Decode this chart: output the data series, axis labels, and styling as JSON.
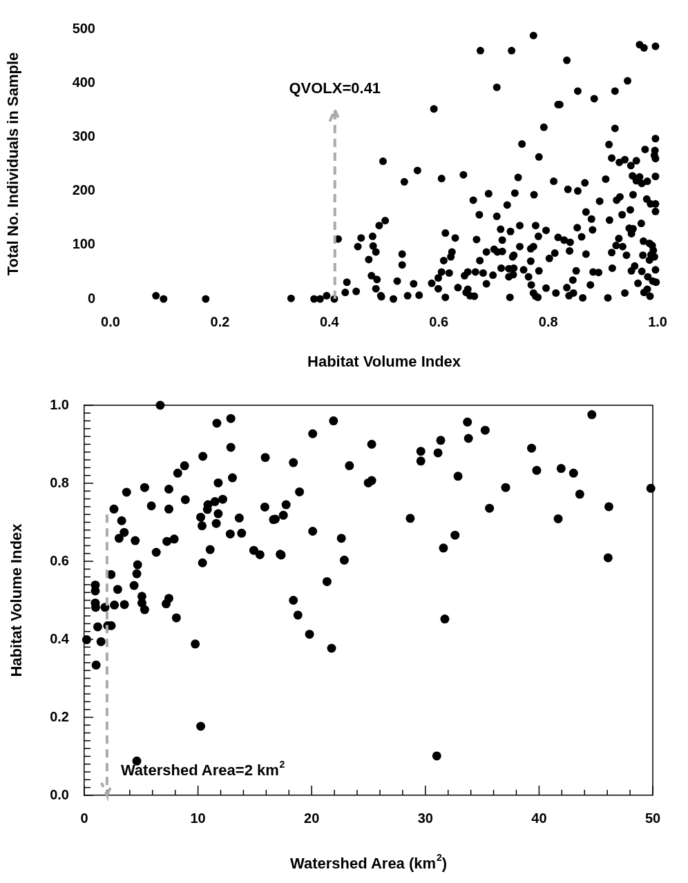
{
  "chart_data": [
    {
      "type": "scatter",
      "xlabel": "Habitat Volume Index",
      "ylabel": "Total No. Individuals in Sample",
      "marker": "circle",
      "grid": false,
      "legend": false,
      "xlim": [
        0,
        1
      ],
      "ylim": [
        0,
        500
      ],
      "xticks": [
        {
          "value": 0,
          "label": "0.0"
        },
        {
          "value": 0.2,
          "label": "0.2"
        },
        {
          "value": 0.4,
          "label": "0.4"
        },
        {
          "value": 0.6,
          "label": "0.6"
        },
        {
          "value": 0.8,
          "label": "0.8"
        },
        {
          "value": 1,
          "label": "1.0"
        }
      ],
      "yticks": [
        0,
        100,
        200,
        300,
        400,
        500
      ],
      "ref_lines": [
        {
          "axis": "x",
          "value": 0.41,
          "label": "QVOLX=0.41",
          "color": "#aaaaaa",
          "line_style": "dashed"
        }
      ],
      "x": [
        0.083,
        0.097,
        0.174,
        0.33,
        0.372,
        0.383,
        0.395,
        0.409,
        0.416,
        0.432,
        0.429,
        0.449,
        0.452,
        0.458,
        0.479,
        0.48,
        0.485,
        0.472,
        0.491,
        0.477,
        0.487,
        0.485,
        0.494,
        0.498,
        0.502,
        0.773,
        0.676,
        0.733,
        0.834,
        0.967,
        0.975,
        0.996,
        0.945,
        0.706,
        0.854,
        0.922,
        0.884,
        0.818,
        0.821,
        0.591,
        0.792,
        0.922,
        0.752,
        0.996,
        0.911,
        0.977,
        0.995,
        0.994,
        0.996,
        0.783,
        0.916,
        0.93,
        0.94,
        0.951,
        0.961,
        0.561,
        0.537,
        0.605,
        0.645,
        0.745,
        0.81,
        0.905,
        0.954,
        0.967,
        0.961,
        0.971,
        0.981,
        0.996,
        0.867,
        0.836,
        0.854,
        0.691,
        0.739,
        0.774,
        0.663,
        0.725,
        0.894,
        0.925,
        0.931,
        0.955,
        0.98,
        0.987,
        0.996,
        0.996,
        0.95,
        0.935,
        0.869,
        0.879,
        0.674,
        0.706,
        0.912,
        0.97,
        0.748,
        0.777,
        0.713,
        0.731,
        0.796,
        0.853,
        0.881,
        0.948,
        0.955,
        0.952,
        0.612,
        0.63,
        0.669,
        0.716,
        0.782,
        0.818,
        0.829,
        0.84,
        0.861,
        0.929,
        0.974,
        0.985,
        0.99,
        0.992,
        0.988,
        0.994,
        0.985,
        0.924,
        0.936,
        0.748,
        0.773,
        0.768,
        0.624,
        0.622,
        0.687,
        0.701,
        0.707,
        0.716,
        0.737,
        0.735,
        0.839,
        0.812,
        0.869,
        0.916,
        0.943,
        0.973,
        0.533,
        0.533,
        0.609,
        0.675,
        0.768,
        0.802,
        0.714,
        0.728,
        0.737,
        0.755,
        0.783,
        0.851,
        0.882,
        0.892,
        0.917,
        0.958,
        0.952,
        0.971,
        0.996,
        0.982,
        0.991,
        0.997,
        0.964,
        0.981,
        0.975,
        0.986,
        0.605,
        0.619,
        0.599,
        0.647,
        0.653,
        0.667,
        0.681,
        0.699,
        0.728,
        0.736,
        0.764,
        0.845,
        0.524,
        0.554,
        0.587,
        0.687,
        0.769,
        0.877,
        0.599,
        0.635,
        0.653,
        0.796,
        0.834,
        0.65,
        0.657,
        0.665,
        0.773,
        0.777,
        0.781,
        0.814,
        0.838,
        0.846,
        0.495,
        0.517,
        0.543,
        0.564,
        0.612,
        0.73,
        0.863,
        0.909,
        0.94
      ],
      "series": [
        {
          "color": "#000000",
          "values": [
            6,
            0,
            0,
            1,
            0,
            0,
            6,
            0,
            111,
            31,
            12,
            14,
            97,
            113,
            116,
            98,
            87,
            73,
            136,
            43,
            36,
            19,
            6,
            255,
            145,
            488,
            460,
            460,
            442,
            471,
            465,
            468,
            404,
            392,
            385,
            385,
            371,
            360,
            360,
            352,
            318,
            316,
            287,
            297,
            286,
            277,
            275,
            266,
            260,
            263,
            261,
            253,
            258,
            247,
            256,
            238,
            217,
            223,
            230,
            225,
            218,
            222,
            228,
            226,
            219,
            214,
            218,
            227,
            215,
            203,
            200,
            195,
            196,
            193,
            183,
            174,
            181,
            183,
            189,
            193,
            185,
            176,
            176,
            162,
            165,
            156,
            161,
            148,
            156,
            153,
            146,
            140,
            136,
            136,
            129,
            125,
            127,
            132,
            128,
            131,
            130,
            121,
            122,
            113,
            110,
            109,
            116,
            114,
            109,
            105,
            115,
            112,
            107,
            103,
            99,
            90,
            82,
            78,
            72,
            99,
            97,
            97,
            97,
            93,
            87,
            78,
            87,
            92,
            87,
            88,
            81,
            78,
            89,
            85,
            83,
            86,
            81,
            81,
            83,
            63,
            71,
            71,
            70,
            75,
            57,
            56,
            57,
            54,
            52,
            52,
            50,
            49,
            57,
            61,
            52,
            51,
            54,
            41,
            33,
            31,
            29,
            18,
            12,
            5,
            50,
            48,
            39,
            43,
            50,
            50,
            48,
            44,
            41,
            45,
            41,
            35,
            33,
            28,
            29,
            28,
            26,
            26,
            19,
            21,
            18,
            20,
            21,
            12,
            6,
            5,
            11,
            5,
            3,
            11,
            6,
            11,
            4,
            0,
            6,
            7,
            3,
            3,
            2,
            2,
            11
          ]
        }
      ]
    },
    {
      "type": "scatter",
      "xlabel": "Watershed Area (km$^{2}$)",
      "ylabel": "Habitat Volume Index",
      "marker": "circle",
      "grid": false,
      "legend": false,
      "xlim": [
        0,
        50
      ],
      "ylim": [
        0,
        1
      ],
      "xticks": [
        0,
        {
          "value": 2,
          "label": null
        },
        {
          "value": 4,
          "label": null
        },
        {
          "value": 6,
          "label": null
        },
        {
          "value": 8,
          "label": null
        },
        10,
        {
          "value": 12,
          "label": null
        },
        {
          "value": 14,
          "label": null
        },
        {
          "value": 16,
          "label": null
        },
        {
          "value": 18,
          "label": null
        },
        20,
        {
          "value": 22,
          "label": null
        },
        {
          "value": 24,
          "label": null
        },
        {
          "value": 26,
          "label": null
        },
        {
          "value": 28,
          "label": null
        },
        30,
        {
          "value": 32,
          "label": null
        },
        {
          "value": 34,
          "label": null
        },
        {
          "value": 36,
          "label": null
        },
        {
          "value": 38,
          "label": null
        },
        40,
        {
          "value": 42,
          "label": null
        },
        {
          "value": 44,
          "label": null
        },
        {
          "value": 46,
          "label": null
        },
        {
          "value": 48,
          "label": null
        },
        50
      ],
      "yticks": [
        {
          "value": 0,
          "label": "0.0"
        },
        {
          "value": 0.02,
          "label": null
        },
        {
          "value": 0.04,
          "label": null
        },
        {
          "value": 0.06,
          "label": null
        },
        {
          "value": 0.08,
          "label": null
        },
        {
          "value": 0.1,
          "label": null
        },
        {
          "value": 0.12,
          "label": null
        },
        {
          "value": 0.14,
          "label": null
        },
        {
          "value": 0.16,
          "label": null
        },
        {
          "value": 0.18,
          "label": null
        },
        {
          "value": 0.2,
          "label": "0.2"
        },
        {
          "value": 0.22,
          "label": null
        },
        {
          "value": 0.24,
          "label": null
        },
        {
          "value": 0.26,
          "label": null
        },
        {
          "value": 0.28,
          "label": null
        },
        {
          "value": 0.3,
          "label": null
        },
        {
          "value": 0.32,
          "label": null
        },
        {
          "value": 0.34,
          "label": null
        },
        {
          "value": 0.36,
          "label": null
        },
        {
          "value": 0.38,
          "label": null
        },
        {
          "value": 0.4,
          "label": "0.4"
        },
        {
          "value": 0.42,
          "label": null
        },
        {
          "value": 0.44,
          "label": null
        },
        {
          "value": 0.46,
          "label": null
        },
        {
          "value": 0.48,
          "label": null
        },
        {
          "value": 0.5,
          "label": null
        },
        {
          "value": 0.52,
          "label": null
        },
        {
          "value": 0.54,
          "label": null
        },
        {
          "value": 0.56,
          "label": null
        },
        {
          "value": 0.58,
          "label": null
        },
        {
          "value": 0.6,
          "label": "0.6"
        },
        {
          "value": 0.62,
          "label": null
        },
        {
          "value": 0.64,
          "label": null
        },
        {
          "value": 0.66,
          "label": null
        },
        {
          "value": 0.68,
          "label": null
        },
        {
          "value": 0.7,
          "label": null
        },
        {
          "value": 0.72,
          "label": null
        },
        {
          "value": 0.74,
          "label": null
        },
        {
          "value": 0.76,
          "label": null
        },
        {
          "value": 0.78,
          "label": null
        },
        {
          "value": 0.8,
          "label": "0.8"
        },
        {
          "value": 0.82,
          "label": null
        },
        {
          "value": 0.84,
          "label": null
        },
        {
          "value": 0.86,
          "label": null
        },
        {
          "value": 0.88,
          "label": null
        },
        {
          "value": 0.9,
          "label": null
        },
        {
          "value": 0.92,
          "label": null
        },
        {
          "value": 0.94,
          "label": null
        },
        {
          "value": 0.96,
          "label": null
        },
        {
          "value": 0.98,
          "label": null
        },
        {
          "value": 1,
          "label": "1.0"
        }
      ],
      "ref_lines": [
        {
          "axis": "x",
          "value": 2,
          "label": "Watershed Area=2 km$^{2}$",
          "color": "#aaaaaa",
          "line_style": "dashed"
        }
      ],
      "x": [
        6.68,
        12.89,
        11.66,
        12.89,
        10.43,
        15.92,
        8.82,
        8.22,
        13.03,
        11.78,
        5.31,
        3.72,
        7.44,
        8.89,
        12.18,
        11.49,
        10.88,
        10.83,
        15.88,
        5.9,
        2.61,
        7.44,
        11.78,
        10.24,
        10.36,
        16.64,
        13.63,
        3.29,
        11.61,
        3.51,
        3.06,
        4.48,
        7.91,
        7.27,
        12.84,
        13.84,
        11.07,
        6.33,
        14.91,
        15.45,
        17.23,
        10.4,
        4.69,
        4.62,
        2.35,
        0.97,
        0.97,
        4.38,
        2.94,
        5.07,
        5.07,
        5.31,
        7.44,
        7.2,
        0.97,
        1.0,
        1.82,
        2.65,
        3.53,
        8.1,
        1.18,
        2.06,
        2.37,
        0.21,
        1.47,
        9.76,
        1.04,
        10.24,
        4.62,
        44.64,
        21.92,
        33.7,
        33.79,
        35.26,
        20.09,
        31.35,
        31.11,
        29.6,
        29.6,
        25.28,
        39.34,
        18.39,
        23.32,
        39.79,
        41.94,
        43.03,
        32.87,
        25.28,
        24.98,
        49.83,
        37.06,
        18.93,
        43.58,
        17.75,
        17.51,
        16.8,
        46.14,
        35.64,
        28.67,
        41.68,
        20.09,
        22.61,
        32.61,
        17.32,
        22.87,
        31.59,
        46.07,
        21.35,
        18.39,
        18.79,
        31.71,
        19.81,
        21.75,
        31.0
      ],
      "series": [
        {
          "color": "#000000",
          "values": [
            1.0,
            0.966,
            0.954,
            0.892,
            0.869,
            0.866,
            0.845,
            0.826,
            0.814,
            0.801,
            0.789,
            0.777,
            0.785,
            0.758,
            0.759,
            0.753,
            0.745,
            0.733,
            0.739,
            0.742,
            0.734,
            0.734,
            0.722,
            0.713,
            0.691,
            0.707,
            0.711,
            0.704,
            0.697,
            0.674,
            0.659,
            0.653,
            0.657,
            0.651,
            0.67,
            0.672,
            0.63,
            0.623,
            0.628,
            0.617,
            0.618,
            0.596,
            0.591,
            0.568,
            0.566,
            0.539,
            0.524,
            0.538,
            0.528,
            0.51,
            0.493,
            0.476,
            0.505,
            0.491,
            0.493,
            0.482,
            0.482,
            0.488,
            0.489,
            0.455,
            0.432,
            0.435,
            0.435,
            0.399,
            0.394,
            0.388,
            0.334,
            0.177,
            0.088,
            0.976,
            0.96,
            0.957,
            0.915,
            0.936,
            0.927,
            0.91,
            0.878,
            0.882,
            0.857,
            0.9,
            0.89,
            0.853,
            0.845,
            0.833,
            0.838,
            0.826,
            0.818,
            0.807,
            0.801,
            0.787,
            0.789,
            0.778,
            0.772,
            0.745,
            0.718,
            0.708,
            0.74,
            0.736,
            0.71,
            0.709,
            0.677,
            0.659,
            0.667,
            0.616,
            0.603,
            0.634,
            0.609,
            0.548,
            0.5,
            0.462,
            0.452,
            0.413,
            0.377,
            0.101
          ]
        }
      ]
    }
  ]
}
